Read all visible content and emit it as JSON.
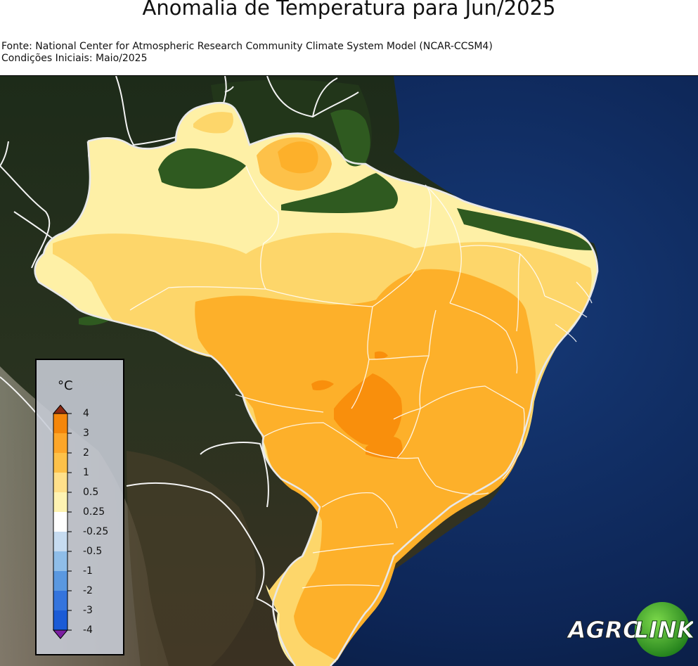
{
  "title": "Anomalia de Temperatura para Jun/2025",
  "source_lines": [
    "Fonte: National Center for Atmospheric Research Community Climate System Model (NCAR-CCSM4)",
    "Condições Iniciais: Maio/2025"
  ],
  "legend": {
    "unit": "°C",
    "ticks": [
      "4",
      "3",
      "2",
      "1",
      "0.5",
      "0.25",
      "-0.25",
      "-0.5",
      "-1",
      "-2",
      "-3",
      "-4"
    ],
    "colors": [
      "#e8391e",
      "#f4860a",
      "#fda629",
      "#fdc149",
      "#ffe08a",
      "#fef3b2",
      "#ffffff",
      "#c6dbf0",
      "#8fbde8",
      "#5a98e0",
      "#3474dd",
      "#1b5bd6",
      "#7b1fa2"
    ]
  },
  "logo": {
    "left": "AGRO",
    "right": "LINK"
  },
  "colors": {
    "ocean": "#0b1f44",
    "land_dark": "#1b2a17",
    "forest": "#2e5a22",
    "anomaly_025_05": "#fef0a6",
    "anomaly_05_1": "#fdd66a",
    "anomaly_1_2": "#fdb02a",
    "anomaly_2_3": "#f98f0c",
    "borders": "#f4f4f4"
  }
}
